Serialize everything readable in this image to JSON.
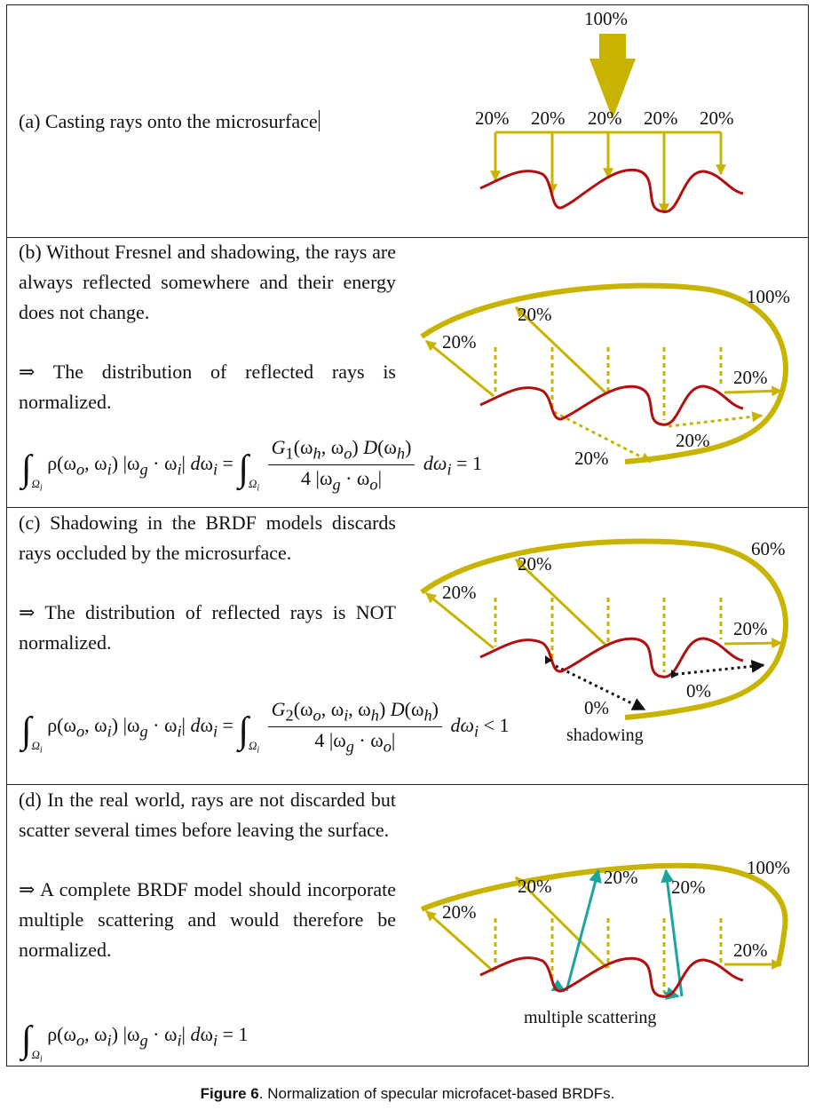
{
  "colors": {
    "ray": "#c8b400",
    "surface": "#b01010",
    "shadow_ray": "#111111",
    "scatter_ray": "#1aa5a0"
  },
  "panel_a": {
    "text": "(a) Casting rays onto the microsurface",
    "labels": {
      "incoming": "100%",
      "ray1": "20%",
      "ray2": "20%",
      "ray3": "20%",
      "ray4": "20%",
      "ray5": "20%"
    }
  },
  "panel_b": {
    "text1": "(b) Without Fresnel and shadowing, the rays are always reflected somewhere and their energy does not change.",
    "text2": "⇒ The distribution of reflected rays is normalized.",
    "labels": {
      "total": "100%",
      "a": "20%",
      "b": "20%",
      "c": "20%",
      "d": "20%",
      "e": "20%"
    },
    "eq": {
      "G": "G",
      "G_sub": "1",
      "rhs": "dω",
      "rhs_sub": "i",
      "result": "= 1"
    }
  },
  "panel_c": {
    "text1": "(c) Shadowing in the BRDF models discards rays occluded by the microsurface.",
    "text2": "⇒ The distribution of reflected rays is NOT normalized.",
    "labels": {
      "total": "60%",
      "a": "20%",
      "b": "20%",
      "c": "20%",
      "zero1": "0%",
      "zero2": "0%"
    },
    "eq": {
      "G": "G",
      "G_sub": "2",
      "rhs": "dω",
      "rhs_sub": "i",
      "result": "< 1",
      "shadow_label": "shadowing"
    }
  },
  "panel_d": {
    "text1": "(d) In the real world, rays are not discarded but scatter several times before leaving the surface.",
    "text2": "⇒ A complete BRDF model should incorporate multiple scattering and would therefore be normalized.",
    "labels": {
      "total": "100%",
      "a": "20%",
      "b": "20%",
      "c": "20%",
      "d": "20%",
      "e": "20%",
      "scatter": "multiple scattering"
    },
    "eq": {
      "result": "= 1"
    }
  },
  "caption": {
    "label": "Figure 6",
    "text": ". Normalization of specular microfacet-based BRDFs."
  }
}
